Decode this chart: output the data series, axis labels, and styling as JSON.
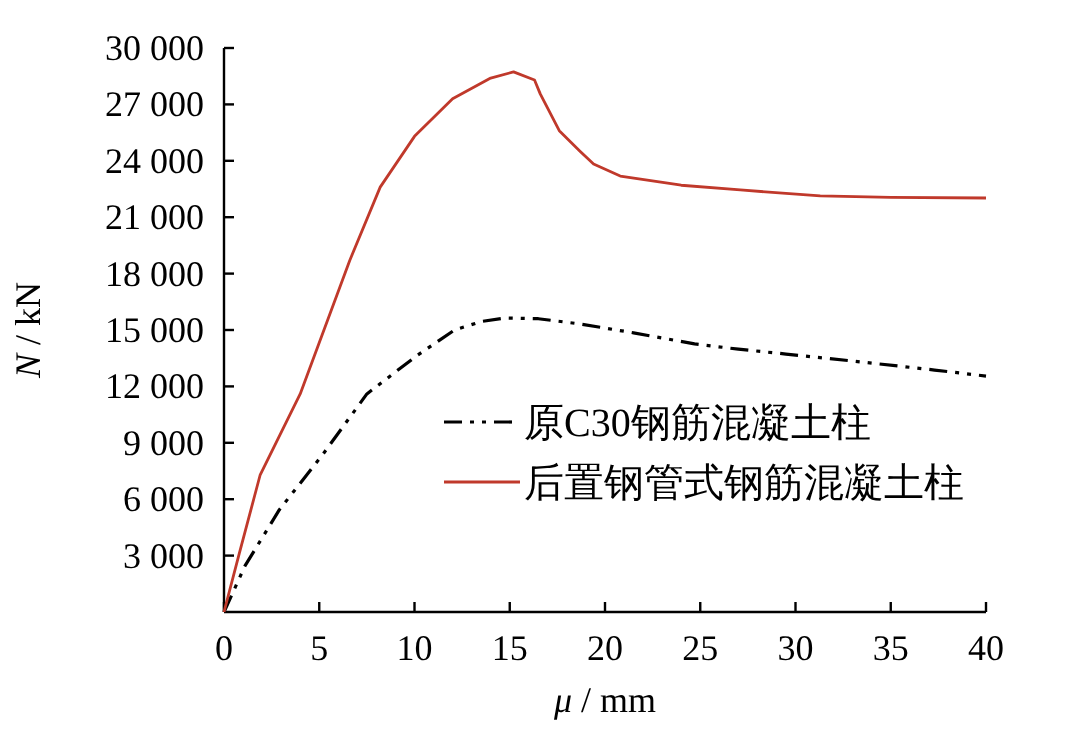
{
  "chart_data": {
    "type": "line",
    "xlabel": "μ / mm",
    "ylabel": "N / kN",
    "xlim": [
      0,
      40
    ],
    "xticks": [
      0,
      5,
      10,
      15,
      20,
      25,
      30,
      35,
      40
    ],
    "ylim": [
      0,
      30000
    ],
    "yticks": [
      {
        "value": 3000,
        "label": "3 000"
      },
      {
        "value": 6000,
        "label": "6 000"
      },
      {
        "value": 9000,
        "label": "9 000"
      },
      {
        "value": 12000,
        "label": "12 000"
      },
      {
        "value": 15000,
        "label": "15 000"
      },
      {
        "value": 18000,
        "label": "18 000"
      },
      {
        "value": 21000,
        "label": "21 000"
      },
      {
        "value": 24000,
        "label": "24 000"
      },
      {
        "value": 27000,
        "label": "27 000"
      },
      {
        "value": 30000,
        "label": "30 000"
      }
    ],
    "grid": false,
    "legend": "bottom right",
    "marker": "none",
    "series": [
      {
        "name": "原C30钢筋混凝土柱",
        "color": "#000000",
        "line_style": "dashed",
        "x": [
          0,
          1.1,
          2.9,
          5.2,
          7.5,
          10.1,
          12.1,
          13.5,
          14.8,
          16.5,
          18.7,
          21.5,
          24.7,
          27,
          29.5,
          33,
          37.3,
          40
        ],
        "values": [
          0,
          2450,
          5430,
          8400,
          11600,
          13620,
          15000,
          15450,
          15640,
          15600,
          15320,
          14850,
          14260,
          13980,
          13720,
          13350,
          12870,
          12550
        ]
      },
      {
        "name": "后置钢管式钢筋混凝土柱",
        "color": "#c0392b",
        "line_style": "solid",
        "x": [
          0,
          0.8,
          1.9,
          4,
          6.6,
          8.2,
          10,
          12,
          14,
          15.2,
          16.3,
          16.6,
          17.6,
          18.7,
          19.4,
          20.8,
          24,
          27.1,
          31.3,
          35,
          40
        ],
        "values": [
          0,
          3100,
          7300,
          11600,
          18700,
          22600,
          25300,
          27300,
          28400,
          28730,
          28300,
          27560,
          25600,
          24500,
          23830,
          23190,
          22700,
          22450,
          22130,
          22050,
          22020
        ]
      }
    ]
  }
}
